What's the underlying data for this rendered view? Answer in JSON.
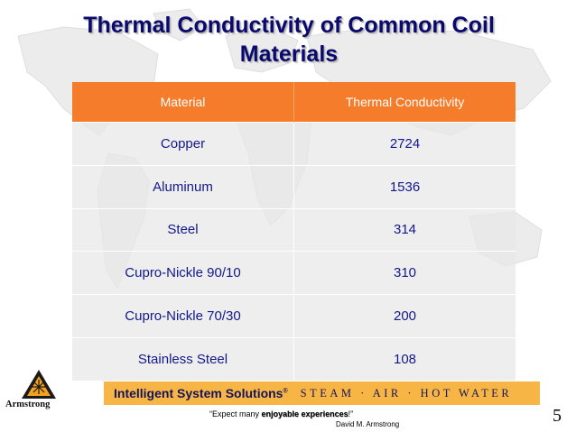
{
  "slide": {
    "title_line1": "Thermal Conductivity of Common Coil",
    "title_line2": "Materials",
    "page_number": "5"
  },
  "table": {
    "headers": [
      "Material",
      "Thermal Conductivity"
    ],
    "rows": [
      {
        "material": "Copper",
        "value": "2724"
      },
      {
        "material": "Aluminum",
        "value": "1536"
      },
      {
        "material": "Steel",
        "value": "314"
      },
      {
        "material": "Cupro-Nickle 90/10",
        "value": "310"
      },
      {
        "material": "Cupro-Nickle 70/30",
        "value": "200"
      },
      {
        "material": "Stainless Steel",
        "value": "108"
      }
    ],
    "header_color": "#f57c2a",
    "text_color": "#13188a"
  },
  "footer": {
    "logo_text": "Armstrong",
    "banner_brand": "Intelligent System Solutions",
    "banner_mark": "®",
    "banner_tagline": "STEAM · AIR · HOT WATER",
    "quote_prefix": "“Expect many ",
    "quote_emphasis": "enjoyable experiences",
    "quote_suffix": "!”",
    "quote_author": "David M. Armstrong",
    "banner_color": "#f6b545"
  }
}
